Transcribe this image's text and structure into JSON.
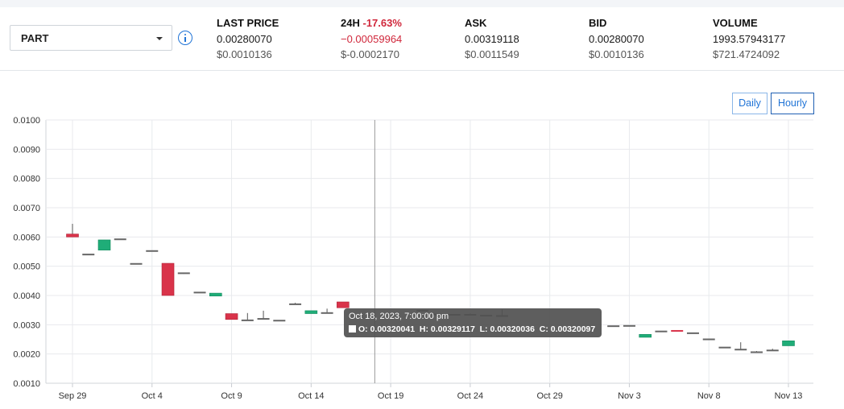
{
  "market": {
    "selected": "PART"
  },
  "stats": {
    "last_price": {
      "label": "LAST PRICE",
      "value": "0.00280070",
      "usd": "$0.0010136"
    },
    "change_24h": {
      "label": "24H",
      "change_pct": "-17.63%",
      "value": "−0.00059964",
      "usd": "$-0.0002170"
    },
    "ask": {
      "label": "ASK",
      "value": "0.00319118",
      "usd": "$0.0011549"
    },
    "bid": {
      "label": "BID",
      "value": "0.00280070",
      "usd": "$0.0010136"
    },
    "volume": {
      "label": "VOLUME",
      "value": "1993.57943177",
      "usd": "$721.4724092"
    }
  },
  "controls": {
    "daily_label": "Daily",
    "hourly_label": "Hourly"
  },
  "colors": {
    "up": "#1fad78",
    "down": "#d9334a",
    "flat": "#666666",
    "accent": "#1f73d6"
  },
  "tooltip": {
    "title": "Oct 18, 2023, 7:00:00 pm",
    "text": "O: 0.00320041  H: 0.00329117  L: 0.00320036  C: 0.00320097"
  },
  "chart_data": {
    "type": "candlestick",
    "ylim": [
      0.001,
      0.01
    ],
    "y_ticks": [
      "0.0100",
      "0.0090",
      "0.0080",
      "0.0070",
      "0.0060",
      "0.0050",
      "0.0040",
      "0.0030",
      "0.0020",
      "0.0010"
    ],
    "x_ticks": [
      "Sep 29",
      "Oct 4",
      "Oct 9",
      "Oct 14",
      "Oct 19",
      "Oct 24",
      "Oct 29",
      "Nov 3",
      "Nov 8",
      "Nov 13"
    ],
    "x_start": "2023-09-29",
    "x_end": "2023-11-13",
    "crosshair_date": "2023-10-18",
    "grid": true,
    "candles": [
      {
        "date": "2023-09-29",
        "o": 0.0061,
        "h": 0.00645,
        "l": 0.006,
        "c": 0.006
      },
      {
        "date": "2023-09-30",
        "o": 0.0054,
        "h": 0.0054,
        "l": 0.0054,
        "c": 0.0054
      },
      {
        "date": "2023-10-01",
        "o": 0.00555,
        "h": 0.0059,
        "l": 0.00555,
        "c": 0.0059
      },
      {
        "date": "2023-10-02",
        "o": 0.00592,
        "h": 0.00592,
        "l": 0.00592,
        "c": 0.00592
      },
      {
        "date": "2023-10-03",
        "o": 0.00508,
        "h": 0.00508,
        "l": 0.00508,
        "c": 0.00508
      },
      {
        "date": "2023-10-04",
        "o": 0.00552,
        "h": 0.00552,
        "l": 0.00552,
        "c": 0.00552
      },
      {
        "date": "2023-10-05",
        "o": 0.0051,
        "h": 0.0051,
        "l": 0.004,
        "c": 0.004
      },
      {
        "date": "2023-10-06",
        "o": 0.00476,
        "h": 0.00478,
        "l": 0.00474,
        "c": 0.00476
      },
      {
        "date": "2023-10-07",
        "o": 0.0041,
        "h": 0.0041,
        "l": 0.0041,
        "c": 0.0041
      },
      {
        "date": "2023-10-08",
        "o": 0.00398,
        "h": 0.00408,
        "l": 0.00398,
        "c": 0.00408
      },
      {
        "date": "2023-10-09",
        "o": 0.00338,
        "h": 0.00338,
        "l": 0.00318,
        "c": 0.00318
      },
      {
        "date": "2023-10-10",
        "o": 0.00315,
        "h": 0.0034,
        "l": 0.00315,
        "c": 0.00315
      },
      {
        "date": "2023-10-11",
        "o": 0.0032,
        "h": 0.00348,
        "l": 0.0032,
        "c": 0.0032
      },
      {
        "date": "2023-10-12",
        "o": 0.00314,
        "h": 0.00314,
        "l": 0.00314,
        "c": 0.00314
      },
      {
        "date": "2023-10-13",
        "o": 0.0037,
        "h": 0.00375,
        "l": 0.0037,
        "c": 0.0037
      },
      {
        "date": "2023-10-14",
        "o": 0.00338,
        "h": 0.00348,
        "l": 0.00338,
        "c": 0.00348
      },
      {
        "date": "2023-10-15",
        "o": 0.0034,
        "h": 0.00355,
        "l": 0.0034,
        "c": 0.0034
      },
      {
        "date": "2023-10-16",
        "o": 0.00378,
        "h": 0.00378,
        "l": 0.00358,
        "c": 0.00358
      },
      {
        "date": "2023-10-21",
        "o": 0.00348,
        "h": 0.00348,
        "l": 0.00348,
        "c": 0.00348
      },
      {
        "date": "2023-10-22",
        "o": 0.00335,
        "h": 0.00335,
        "l": 0.00335,
        "c": 0.00335
      },
      {
        "date": "2023-10-23",
        "o": 0.00334,
        "h": 0.00334,
        "l": 0.00334,
        "c": 0.00334
      },
      {
        "date": "2023-10-24",
        "o": 0.00334,
        "h": 0.00338,
        "l": 0.00334,
        "c": 0.00334
      },
      {
        "date": "2023-10-25",
        "o": 0.00331,
        "h": 0.00331,
        "l": 0.00331,
        "c": 0.00331
      },
      {
        "date": "2023-10-26",
        "o": 0.0033,
        "h": 0.00352,
        "l": 0.0033,
        "c": 0.0033
      },
      {
        "date": "2023-11-02",
        "o": 0.00295,
        "h": 0.00295,
        "l": 0.00295,
        "c": 0.00295
      },
      {
        "date": "2023-11-03",
        "o": 0.00296,
        "h": 0.00296,
        "l": 0.00296,
        "c": 0.00296
      },
      {
        "date": "2023-11-04",
        "o": 0.00257,
        "h": 0.00267,
        "l": 0.00257,
        "c": 0.00267
      },
      {
        "date": "2023-11-05",
        "o": 0.00277,
        "h": 0.00277,
        "l": 0.00277,
        "c": 0.00277
      },
      {
        "date": "2023-11-06",
        "o": 0.00279,
        "h": 0.00279,
        "l": 0.00277,
        "c": 0.00277
      },
      {
        "date": "2023-11-07",
        "o": 0.00271,
        "h": 0.00271,
        "l": 0.00271,
        "c": 0.00271
      },
      {
        "date": "2023-11-08",
        "o": 0.0025,
        "h": 0.0025,
        "l": 0.0025,
        "c": 0.0025
      },
      {
        "date": "2023-11-09",
        "o": 0.00222,
        "h": 0.00222,
        "l": 0.00222,
        "c": 0.00222
      },
      {
        "date": "2023-11-10",
        "o": 0.00215,
        "h": 0.0024,
        "l": 0.00215,
        "c": 0.00215
      },
      {
        "date": "2023-11-11",
        "o": 0.00206,
        "h": 0.0021,
        "l": 0.00206,
        "c": 0.00206
      },
      {
        "date": "2023-11-12",
        "o": 0.00212,
        "h": 0.00218,
        "l": 0.00212,
        "c": 0.00212
      },
      {
        "date": "2023-11-13",
        "o": 0.00228,
        "h": 0.00245,
        "l": 0.00228,
        "c": 0.00245
      }
    ]
  }
}
